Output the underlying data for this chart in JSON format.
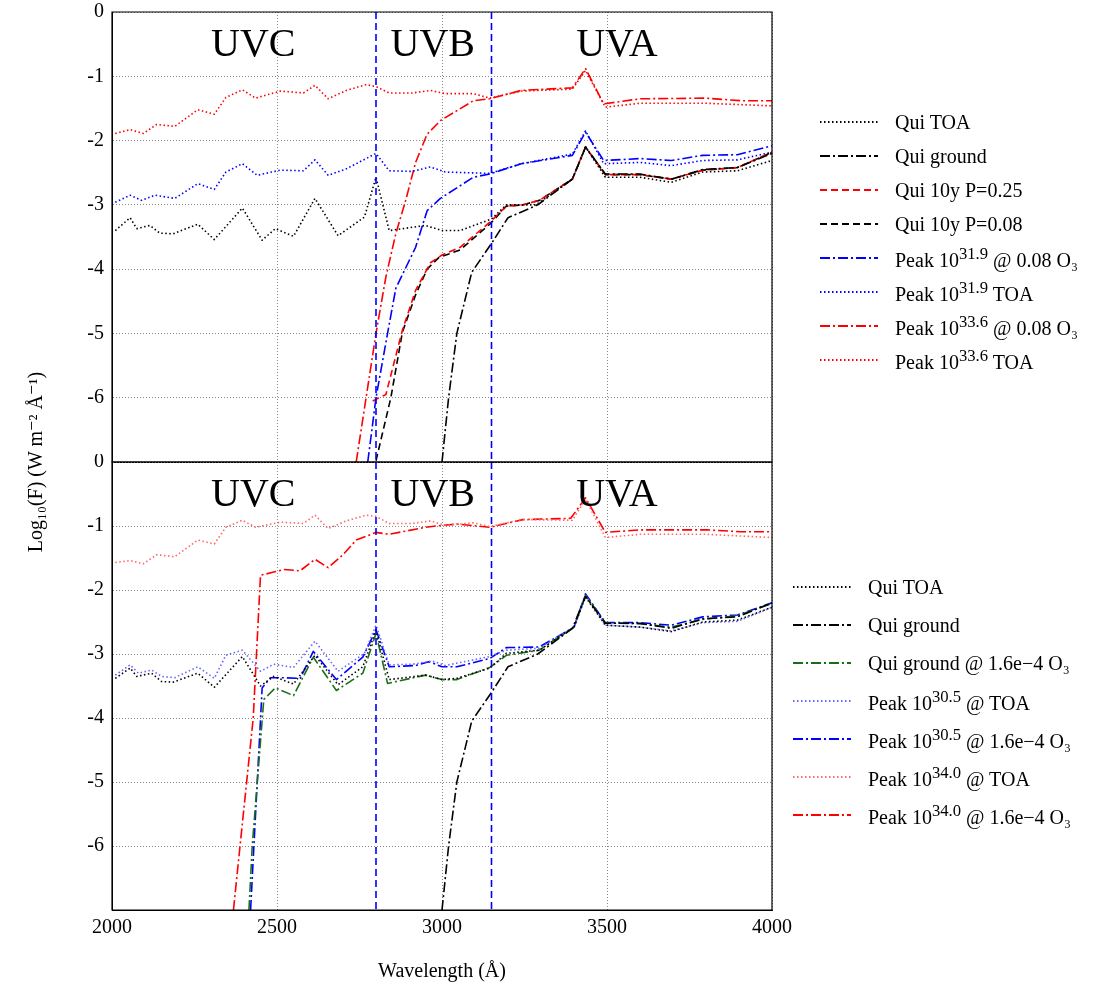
{
  "chart_data": [
    {
      "type": "line",
      "ylabel": "Log₁₀(F) (W m⁻² Å⁻¹)",
      "xlim": [
        2000,
        4000
      ],
      "xticks": [
        2000,
        2500,
        3000,
        3500,
        4000
      ],
      "ylim": [
        -7,
        0
      ],
      "yticks": [
        0,
        -1,
        -2,
        -3,
        -4,
        -5,
        -6,
        {
          "value": -7,
          "label": null
        }
      ],
      "tick_labels": "y",
      "grid": true,
      "legend": "right",
      "ref_lines": [
        {
          "axis": "x",
          "value": 2800,
          "color": "#0000ff",
          "line_style": "dashed"
        },
        {
          "axis": "x",
          "value": 3150,
          "color": "#0000ff",
          "line_style": "dashed"
        }
      ],
      "annotations": [
        "UVC",
        "UVB",
        "UVA"
      ],
      "series": [
        {
          "name": "Qui TOA",
          "color": "#000000",
          "line_style": "dotted",
          "x": [
            2010,
            2055,
            2075,
            2115,
            2145,
            2185,
            2260,
            2310,
            2395,
            2455,
            2495,
            2550,
            2615,
            2685,
            2765,
            2800,
            2840,
            2950,
            3000,
            3055,
            3150,
            3195,
            3285,
            3395,
            3435,
            3495,
            3600,
            3695,
            3790,
            3895,
            4000
          ],
          "values": [
            -3.4,
            -3.2,
            -3.37,
            -3.32,
            -3.44,
            -3.45,
            -3.3,
            -3.54,
            -3.05,
            -3.55,
            -3.37,
            -3.49,
            -2.9,
            -3.48,
            -3.19,
            -2.57,
            -3.4,
            -3.32,
            -3.4,
            -3.4,
            -3.22,
            -3.0,
            -3.0,
            -2.6,
            -2.1,
            -2.57,
            -2.57,
            -2.65,
            -2.49,
            -2.47,
            -2.31
          ]
        },
        {
          "name": "Qui ground",
          "color": "#000000",
          "line_style": "dashdot",
          "x": [
            3000,
            3020,
            3045,
            3090,
            3150,
            3200,
            3290,
            3395,
            3435,
            3495,
            3600,
            3695,
            3790,
            3895,
            4000
          ],
          "values": [
            -7,
            -6,
            -5,
            -4.05,
            -3.6,
            -3.2,
            -3.0,
            -2.6,
            -2.1,
            -2.52,
            -2.52,
            -2.6,
            -2.45,
            -2.42,
            -2.2
          ]
        },
        {
          "name": "Qui 10y P=0.25",
          "color": "#ff0000",
          "line_style": "dashed",
          "x": [
            2790,
            2830,
            2880,
            2920,
            2965,
            3000,
            3055,
            3145,
            3195,
            3245,
            3295,
            3395,
            3435,
            3495,
            3600,
            3695,
            3790,
            3895,
            4000
          ],
          "values": [
            -6.05,
            -5.95,
            -4.95,
            -4.33,
            -3.9,
            -3.78,
            -3.66,
            -3.27,
            -3.02,
            -3.0,
            -2.93,
            -2.6,
            -2.1,
            -2.53,
            -2.53,
            -2.6,
            -2.46,
            -2.42,
            -2.18
          ]
        },
        {
          "name": "Qui 10y P=0.08",
          "color": "#000000",
          "line_style": "dashed",
          "x": [
            2800,
            2845,
            2880,
            2920,
            2955,
            2990,
            3055,
            3145,
            3195,
            3245,
            3295,
            3395,
            3435,
            3495,
            3600,
            3695,
            3790,
            3895,
            4000
          ],
          "values": [
            -6.98,
            -6.0,
            -4.98,
            -4.4,
            -4.0,
            -3.82,
            -3.7,
            -3.3,
            -3.02,
            -3.0,
            -2.93,
            -2.6,
            -2.1,
            -2.53,
            -2.53,
            -2.6,
            -2.46,
            -2.42,
            -2.18
          ]
        },
        {
          "name": "Peak 10$^{31.9}$ @ 0.08 O₃",
          "color": "#0000ff",
          "line_style": "dashdot",
          "x": [
            2775,
            2800,
            2835,
            2860,
            2920,
            2955,
            2995,
            3095,
            3145,
            3240,
            3395,
            3435,
            3490,
            3600,
            3695,
            3790,
            3895,
            4000
          ],
          "values": [
            -7,
            -6.0,
            -5.0,
            -4.3,
            -3.66,
            -3.09,
            -2.9,
            -2.57,
            -2.52,
            -2.36,
            -2.23,
            -1.87,
            -2.31,
            -2.28,
            -2.31,
            -2.23,
            -2.22,
            -2.08
          ]
        },
        {
          "name": "Peak 10$^{31.9}$ TOA",
          "color": "#0000ff",
          "line_style": "dotted",
          "x": [
            2010,
            2055,
            2090,
            2130,
            2190,
            2260,
            2310,
            2345,
            2395,
            2440,
            2510,
            2580,
            2615,
            2655,
            2710,
            2800,
            2840,
            2910,
            2965,
            3010,
            3145,
            3240,
            3395,
            3435,
            3490,
            3600,
            3695,
            3790,
            3895,
            4000
          ],
          "values": [
            -2.96,
            -2.85,
            -2.93,
            -2.85,
            -2.9,
            -2.67,
            -2.76,
            -2.49,
            -2.36,
            -2.54,
            -2.46,
            -2.47,
            -2.3,
            -2.54,
            -2.44,
            -2.2,
            -2.47,
            -2.48,
            -2.41,
            -2.49,
            -2.51,
            -2.36,
            -2.21,
            -1.85,
            -2.36,
            -2.34,
            -2.39,
            -2.31,
            -2.3,
            -2.18
          ]
        },
        {
          "name": "Peak 10$^{33.6}$ @ 0.08 O₃",
          "color": "#ff0000",
          "line_style": "dashdot",
          "x": [
            2740,
            2770,
            2800,
            2830,
            2860,
            2890,
            2920,
            2955,
            2995,
            3095,
            3145,
            3240,
            3395,
            3435,
            3490,
            3600,
            3800,
            3905,
            4000
          ],
          "values": [
            -7,
            -6.0,
            -5.0,
            -4.12,
            -3.45,
            -2.93,
            -2.34,
            -1.9,
            -1.69,
            -1.38,
            -1.35,
            -1.22,
            -1.18,
            -0.88,
            -1.43,
            -1.35,
            -1.34,
            -1.38,
            -1.38
          ]
        },
        {
          "name": "Peak 10$^{33.6}$ TOA",
          "color": "#ff0000",
          "line_style": "dotted",
          "x": [
            2010,
            2055,
            2095,
            2135,
            2190,
            2260,
            2310,
            2345,
            2395,
            2435,
            2510,
            2580,
            2615,
            2655,
            2710,
            2770,
            2800,
            2840,
            2910,
            2965,
            3010,
            3095,
            3145,
            3240,
            3395,
            3435,
            3495,
            3600,
            3800,
            4000
          ],
          "values": [
            -1.89,
            -1.83,
            -1.89,
            -1.75,
            -1.78,
            -1.52,
            -1.59,
            -1.33,
            -1.21,
            -1.34,
            -1.23,
            -1.26,
            -1.14,
            -1.35,
            -1.22,
            -1.13,
            -1.16,
            -1.26,
            -1.26,
            -1.22,
            -1.27,
            -1.27,
            -1.34,
            -1.23,
            -1.2,
            -0.91,
            -1.48,
            -1.42,
            -1.42,
            -1.46
          ]
        }
      ]
    },
    {
      "type": "line",
      "xlabel": "Wavelength (Å)",
      "xlim": [
        2000,
        4000
      ],
      "xticks": [
        2000,
        2500,
        3000,
        3500,
        4000
      ],
      "ylim": [
        -7,
        0
      ],
      "yticks": [
        0,
        -1,
        -2,
        -3,
        -4,
        -5,
        -6,
        {
          "value": -7,
          "label": null
        }
      ],
      "grid": true,
      "legend": "right",
      "ref_lines": [
        {
          "axis": "x",
          "value": 2800,
          "color": "#0000ff",
          "line_style": "dashed"
        },
        {
          "axis": "x",
          "value": 3150,
          "color": "#0000ff",
          "line_style": "dashed"
        }
      ],
      "annotations": [
        "UVC",
        "UVB",
        "UVA"
      ],
      "series": [
        {
          "name": "Qui TOA",
          "color": "#000000",
          "line_style": "dotted",
          "x": [
            2010,
            2055,
            2075,
            2120,
            2150,
            2185,
            2260,
            2310,
            2395,
            2450,
            2490,
            2550,
            2615,
            2685,
            2760,
            2800,
            2840,
            2950,
            3000,
            3045,
            3145,
            3195,
            3295,
            3400,
            3435,
            3495,
            3600,
            3695,
            3790,
            3895,
            4000
          ],
          "values": [
            -3.38,
            -3.22,
            -3.35,
            -3.3,
            -3.43,
            -3.44,
            -3.3,
            -3.52,
            -3.04,
            -3.5,
            -3.35,
            -3.47,
            -3.02,
            -3.48,
            -3.2,
            -2.63,
            -3.4,
            -3.33,
            -3.4,
            -3.38,
            -3.22,
            -2.99,
            -2.94,
            -2.58,
            -2.11,
            -2.55,
            -2.58,
            -2.65,
            -2.5,
            -2.47,
            -2.27
          ]
        },
        {
          "name": "Qui ground",
          "color": "#000000",
          "line_style": "dashdot",
          "x": [
            3000,
            3020,
            3045,
            3090,
            3150,
            3200,
            3290,
            3395,
            3435,
            3495,
            3600,
            3695,
            3790,
            3895,
            4000
          ],
          "values": [
            -7,
            -6,
            -5,
            -4.05,
            -3.6,
            -3.2,
            -3.0,
            -2.6,
            -2.1,
            -2.52,
            -2.52,
            -2.6,
            -2.45,
            -2.42,
            -2.2
          ]
        },
        {
          "name": "Qui ground @ 1.6e−4 O₃",
          "color": "#1a6e1a",
          "line_style": "dashdot",
          "x": [
            2415,
            2425,
            2460,
            2495,
            2550,
            2610,
            2680,
            2760,
            2800,
            2835,
            2950,
            3000,
            3045,
            3145,
            3195,
            3295,
            3400,
            3435,
            3495,
            3600,
            3695,
            3790,
            3895,
            4000
          ],
          "values": [
            -7,
            -6,
            -3.71,
            -3.53,
            -3.65,
            -3.05,
            -3.57,
            -3.3,
            -2.68,
            -3.46,
            -3.33,
            -3.4,
            -3.4,
            -3.21,
            -3.02,
            -2.94,
            -2.58,
            -2.08,
            -2.51,
            -2.53,
            -2.58,
            -2.46,
            -2.4,
            -2.21
          ]
        },
        {
          "name": "Peak 10$^{30.5}$ @ TOA",
          "color": "#6666ff",
          "line_style": "dotted",
          "x": [
            2010,
            2055,
            2080,
            2120,
            2150,
            2190,
            2260,
            2310,
            2345,
            2395,
            2450,
            2490,
            2550,
            2615,
            2685,
            2765,
            2800,
            2840,
            2910,
            2970,
            3010,
            3145,
            3195,
            3295,
            3400,
            3435,
            3495,
            3600,
            3695,
            3790,
            3895,
            4000
          ],
          "values": [
            -3.33,
            -3.17,
            -3.3,
            -3.25,
            -3.35,
            -3.37,
            -3.2,
            -3.38,
            -3.02,
            -2.94,
            -3.27,
            -3.16,
            -3.21,
            -2.8,
            -3.27,
            -2.99,
            -2.55,
            -3.17,
            -3.16,
            -3.11,
            -3.18,
            -3.04,
            -2.94,
            -2.91,
            -2.58,
            -2.08,
            -2.55,
            -2.58,
            -2.64,
            -2.51,
            -2.49,
            -2.27
          ]
        },
        {
          "name": "Peak 10$^{30.5}$ @ 1.6e−4 O₃",
          "color": "#0000ff",
          "line_style": "dashdot",
          "x": [
            2420,
            2430,
            2455,
            2480,
            2510,
            2570,
            2610,
            2680,
            2760,
            2800,
            2840,
            2920,
            2960,
            3000,
            3045,
            3145,
            3195,
            3295,
            3400,
            3435,
            3495,
            3600,
            3695,
            3790,
            3895,
            4000
          ],
          "values": [
            -7,
            -6,
            -3.53,
            -3.37,
            -3.37,
            -3.38,
            -2.96,
            -3.4,
            -3.05,
            -2.62,
            -3.2,
            -3.18,
            -3.12,
            -3.2,
            -3.2,
            -3.07,
            -2.9,
            -2.89,
            -2.58,
            -2.06,
            -2.51,
            -2.51,
            -2.55,
            -2.42,
            -2.39,
            -2.2
          ]
        },
        {
          "name": "Peak 10$^{34.0}$ @ TOA",
          "color": "#ff6666",
          "line_style": "dotted",
          "x": [
            2010,
            2055,
            2095,
            2135,
            2190,
            2260,
            2310,
            2345,
            2395,
            2435,
            2510,
            2580,
            2615,
            2655,
            2710,
            2770,
            2800,
            2840,
            2910,
            2965,
            3010,
            3095,
            3145,
            3240,
            3395,
            3435,
            3495,
            3600,
            3800,
            4000
          ],
          "values": [
            -1.57,
            -1.54,
            -1.59,
            -1.45,
            -1.48,
            -1.22,
            -1.28,
            -1.02,
            -0.91,
            -1.02,
            -0.94,
            -0.96,
            -0.83,
            -1.04,
            -0.92,
            -0.83,
            -0.85,
            -0.96,
            -0.96,
            -0.92,
            -0.99,
            -0.95,
            -1.01,
            -0.9,
            -0.91,
            -0.58,
            -1.18,
            -1.13,
            -1.13,
            -1.18
          ]
        },
        {
          "name": "Peak 10$^{34.0}$ @ 1.6e−4 O₃",
          "color": "#ff0000",
          "line_style": "dashdot",
          "x": [
            2368,
            2428,
            2450,
            2490,
            2520,
            2570,
            2615,
            2655,
            2700,
            2740,
            2800,
            2840,
            2950,
            3000,
            3045,
            3145,
            3245,
            3390,
            3435,
            3495,
            3600,
            3800,
            3905,
            4000
          ],
          "values": [
            -7,
            -4,
            -1.77,
            -1.72,
            -1.68,
            -1.7,
            -1.52,
            -1.65,
            -1.45,
            -1.22,
            -1.1,
            -1.13,
            -1.02,
            -0.99,
            -0.97,
            -1.02,
            -0.9,
            -0.88,
            -0.56,
            -1.1,
            -1.06,
            -1.06,
            -1.09,
            -1.09
          ]
        }
      ]
    }
  ]
}
